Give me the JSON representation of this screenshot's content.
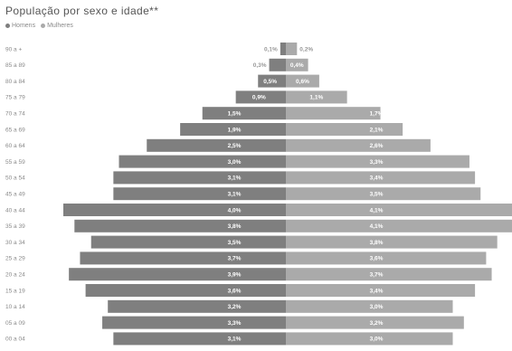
{
  "chart_data": {
    "type": "bar",
    "orientation": "horizontal-pyramid",
    "title": "População por sexo e idade**",
    "categories": [
      "90 a +",
      "85 a 89",
      "80 a 84",
      "75 a 79",
      "70 a 74",
      "65 a 69",
      "60 a 64",
      "55 a 59",
      "50 a 54",
      "45 a 49",
      "40 a 44",
      "35 a 39",
      "30 a 34",
      "25 a 29",
      "20 a 24",
      "15 a 19",
      "10 a 14",
      "05 a 09",
      "00 a 04"
    ],
    "series": [
      {
        "name": "Homens",
        "color": "#7f7f7f",
        "values": [
          0.1,
          0.3,
          0.5,
          0.9,
          1.5,
          1.9,
          2.5,
          3.0,
          3.1,
          3.1,
          4.0,
          3.8,
          3.5,
          3.7,
          3.9,
          3.6,
          3.2,
          3.3,
          3.1
        ],
        "labels": [
          "0,1%",
          "0,3%",
          "0,5%",
          "0,9%",
          "1,5%",
          "1,9%",
          "2,5%",
          "3,0%",
          "3,1%",
          "3,1%",
          "4,0%",
          "3,8%",
          "3,5%",
          "3,7%",
          "3,9%",
          "3,6%",
          "3,2%",
          "3,3%",
          "3,1%"
        ]
      },
      {
        "name": "Mulheres",
        "color": "#aaaaaa",
        "values": [
          0.2,
          0.4,
          0.6,
          1.1,
          1.7,
          2.1,
          2.6,
          3.3,
          3.4,
          3.5,
          4.1,
          4.1,
          3.8,
          3.6,
          3.7,
          3.4,
          3.0,
          3.2,
          3.0
        ],
        "labels": [
          "0,2%",
          "0,4%",
          "0,6%",
          "1,1%",
          "1,7%",
          "2,1%",
          "2,6%",
          "3,3%",
          "3,4%",
          "3,5%",
          "4,1%",
          "4,1%",
          "3,8%",
          "3,6%",
          "3,7%",
          "3,4%",
          "3,0%",
          "3,2%",
          "3,0%"
        ]
      }
    ],
    "xlim": [
      -4.1,
      4.1
    ],
    "grid": false,
    "legend": "top-left"
  }
}
